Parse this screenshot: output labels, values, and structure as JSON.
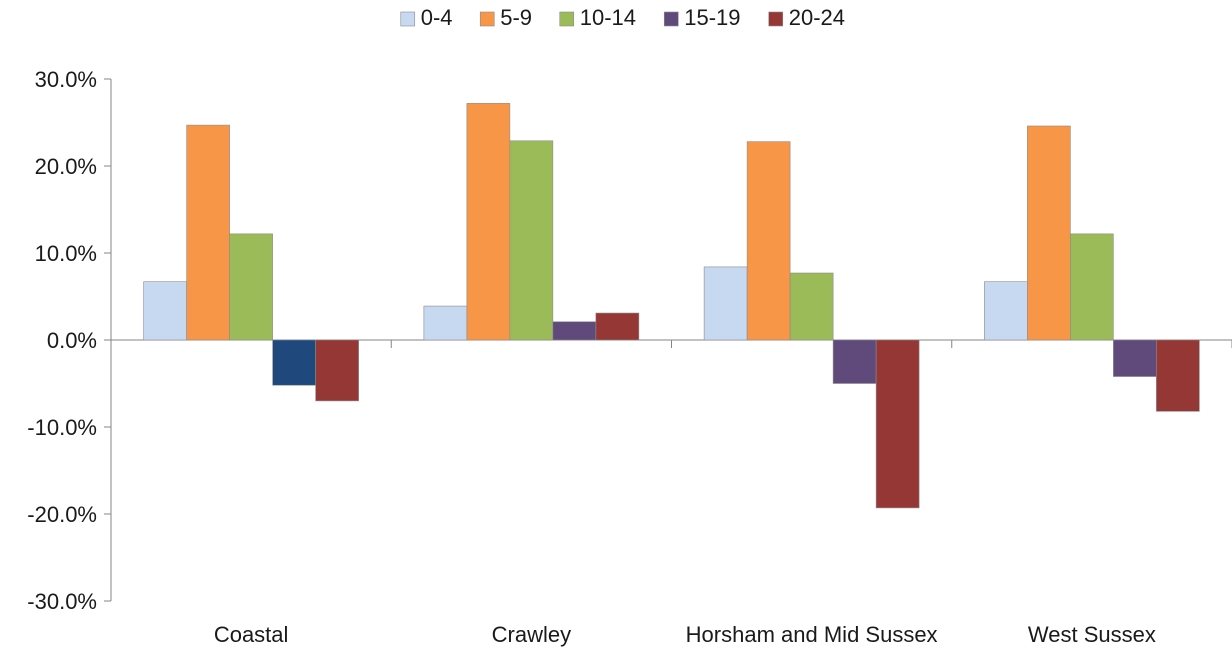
{
  "chart_data": {
    "type": "bar",
    "title": "",
    "xlabel": "",
    "ylabel": "",
    "categories": [
      "Coastal",
      "Crawley",
      "Horsham and Mid Sussex",
      "West Sussex"
    ],
    "series": [
      {
        "name": "0-4",
        "color": "#c6d9f1",
        "values": [
          6.7,
          3.9,
          8.4,
          6.7
        ]
      },
      {
        "name": "5-9",
        "color": "#f79646",
        "values": [
          24.7,
          27.2,
          22.8,
          24.6
        ]
      },
      {
        "name": "10-14",
        "color": "#9bbb59",
        "values": [
          12.2,
          22.9,
          7.7,
          12.2
        ]
      },
      {
        "name": "15-19",
        "color": "#604a7b",
        "values": [
          -5.2,
          2.1,
          -5.0,
          -4.2
        ]
      },
      {
        "name": "20-24",
        "color": "#953735",
        "values": [
          -7.0,
          3.1,
          -19.3,
          -8.2
        ]
      }
    ],
    "point_colors": {
      "series": 3,
      "index": 0,
      "color": "#1f497d"
    },
    "ylim": [
      -30,
      30
    ],
    "yticks": [
      -30,
      -20,
      -10,
      0,
      10,
      20,
      30
    ],
    "ytick_labels": [
      "-30.0%",
      "-20.0%",
      "-10.0%",
      "0.0%",
      "10.0%",
      "20.0%",
      "30.0%"
    ],
    "grid": false,
    "legend_position": "top"
  }
}
